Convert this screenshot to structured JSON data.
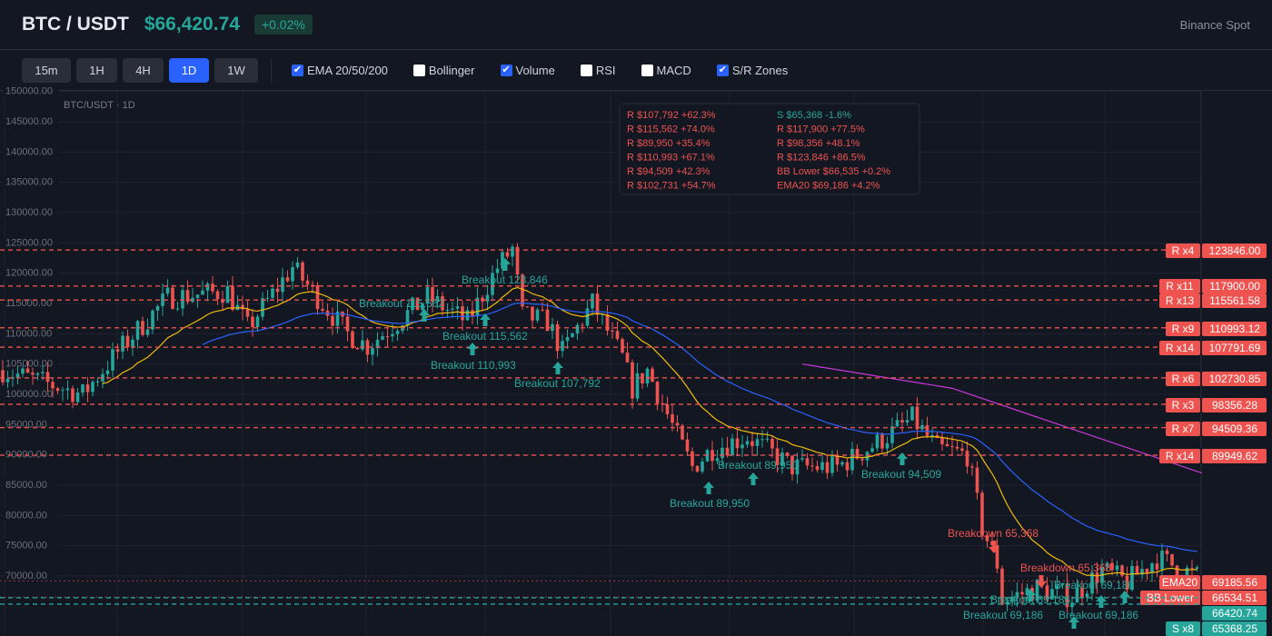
{
  "header": {
    "symbol": "BTC / USDT",
    "price": "$66,420.74",
    "change": "+0.02%",
    "exchange": "Binance Spot"
  },
  "toolbar": {
    "timeframes": [
      {
        "label": "15m",
        "active": false
      },
      {
        "label": "1H",
        "active": false
      },
      {
        "label": "4H",
        "active": false
      },
      {
        "label": "1D",
        "active": true
      },
      {
        "label": "1W",
        "active": false
      }
    ],
    "indicators": [
      {
        "label": "EMA 20/50/200",
        "checked": true
      },
      {
        "label": "Bollinger",
        "checked": false
      },
      {
        "label": "Volume",
        "checked": true
      },
      {
        "label": "RSI",
        "checked": false
      },
      {
        "label": "MACD",
        "checked": false
      },
      {
        "label": "S/R Zones",
        "checked": true
      }
    ]
  },
  "chart": {
    "title": "BTC/USDT · 1D",
    "colors": {
      "up": "#26a69a",
      "down": "#ef5350",
      "ema20": "#f0b90b",
      "ema50": "#2962ff",
      "ema200": "#c738d8",
      "resistance": "#ef5350",
      "support": "#26a69a"
    },
    "y_axis_ticks": [
      150000,
      145000,
      140000,
      135000,
      130000,
      125000,
      120000,
      115000,
      110000,
      105000,
      100000,
      95000,
      90000,
      85000,
      80000,
      75000,
      70000
    ],
    "price_path": [
      [
        0,
        104000
      ],
      [
        16,
        100000
      ],
      [
        23,
        107000
      ],
      [
        33,
        116000
      ],
      [
        45,
        117000
      ],
      [
        49,
        111000
      ],
      [
        58,
        121000
      ],
      [
        69,
        110000
      ],
      [
        73,
        108000
      ],
      [
        85,
        116000
      ],
      [
        93,
        112000
      ],
      [
        99,
        121000
      ],
      [
        102,
        124000
      ],
      [
        104,
        113000
      ],
      [
        109,
        112000
      ],
      [
        112,
        107000
      ],
      [
        118,
        115000
      ],
      [
        124,
        106000
      ],
      [
        126,
        101000
      ],
      [
        129,
        104000
      ],
      [
        135,
        93000
      ],
      [
        138,
        88000
      ],
      [
        142,
        91000
      ],
      [
        149,
        93000
      ],
      [
        158,
        88000
      ],
      [
        167,
        88000
      ],
      [
        175,
        92000
      ],
      [
        182,
        96000
      ],
      [
        187,
        91000
      ],
      [
        193,
        90000
      ],
      [
        196,
        78000
      ],
      [
        199,
        72000
      ],
      [
        200,
        66000
      ],
      [
        207,
        68000
      ],
      [
        214,
        66500
      ],
      [
        220,
        71000
      ],
      [
        225,
        69000
      ],
      [
        231,
        73000
      ],
      [
        239,
        70000
      ]
    ],
    "ema200": [
      [
        160,
        105000
      ],
      [
        190,
        101000
      ],
      [
        215,
        94000
      ],
      [
        240,
        87000
      ]
    ],
    "levels": [
      {
        "tag": "R x4",
        "value": "123846.00",
        "price": 123846,
        "type": "R"
      },
      {
        "tag": "R x11",
        "value": "117900.00",
        "price": 117900,
        "type": "R"
      },
      {
        "tag": "R x13",
        "value": "115561.58",
        "price": 115561.58,
        "type": "R"
      },
      {
        "tag": "R x9",
        "value": "110993.12",
        "price": 110993.12,
        "type": "R"
      },
      {
        "tag": "R x14",
        "value": "107791.69",
        "price": 107791.69,
        "type": "R"
      },
      {
        "tag": "R x6",
        "value": "102730.85",
        "price": 102730.85,
        "type": "R"
      },
      {
        "tag": "R x3",
        "value": "98356.28",
        "price": 98356.28,
        "type": "R"
      },
      {
        "tag": "R x7",
        "value": "94509.36",
        "price": 94509.36,
        "type": "R"
      },
      {
        "tag": "R x14",
        "value": "89949.62",
        "price": 89949.62,
        "type": "R"
      },
      {
        "tag": "EMA20",
        "value": "69185.56",
        "price": 69185.56,
        "type": "EMA"
      },
      {
        "tag": "BB Lower",
        "value": "66534.51",
        "price": 66534.51,
        "type": "BB"
      },
      {
        "tag": "",
        "value": "66420.74",
        "price": 66420.74,
        "type": "LAST"
      },
      {
        "tag": "S x8",
        "value": "65368.25",
        "price": 65368.25,
        "type": "S"
      }
    ],
    "zone_list": [
      {
        "text": "R $107,792 +62.3%",
        "type": "R"
      },
      {
        "text": "R $115,562 +74.0%",
        "type": "R"
      },
      {
        "text": "R $89,950 +35.4%",
        "type": "R"
      },
      {
        "text": "R $110,993 +67.1%",
        "type": "R"
      },
      {
        "text": "R $94,509 +42.3%",
        "type": "R"
      },
      {
        "text": "R $102,731 +54.7%",
        "type": "R"
      },
      {
        "text": "S $65,368 -1.6%",
        "type": "S"
      },
      {
        "text": "R $117,900 +77.5%",
        "type": "R"
      },
      {
        "text": "R $98,356 +48.1%",
        "type": "R"
      },
      {
        "text": "R $123,846 +86.5%",
        "type": "R"
      },
      {
        "text": "BB Lower $66,535 +0.2%",
        "type": "R"
      },
      {
        "text": "EMA20 $69,186 +4.2%",
        "type": "R"
      }
    ],
    "signals": [
      {
        "text": "Breakout 123,846",
        "dir": "up"
      },
      {
        "text": "Breakout 115,562",
        "dir": "up"
      },
      {
        "text": "Breakout 115,562",
        "dir": "up"
      },
      {
        "text": "Breakout 110,993",
        "dir": "up"
      },
      {
        "text": "Breakout 107,792",
        "dir": "up"
      },
      {
        "text": "Breakout 89,950",
        "dir": "up"
      },
      {
        "text": "Breakout 89,950",
        "dir": "up"
      },
      {
        "text": "Breakout 94,509",
        "dir": "up"
      },
      {
        "text": "Breakdown 65,368",
        "dir": "down"
      },
      {
        "text": "Breakdown 65,368",
        "dir": "down"
      },
      {
        "text": "Breakout 69,186",
        "dir": "up"
      },
      {
        "text": "Breakout 69,186",
        "dir": "up"
      },
      {
        "text": "Breakout 69,186",
        "dir": "up"
      },
      {
        "text": "Breakout 69,186",
        "dir": "up"
      }
    ]
  }
}
